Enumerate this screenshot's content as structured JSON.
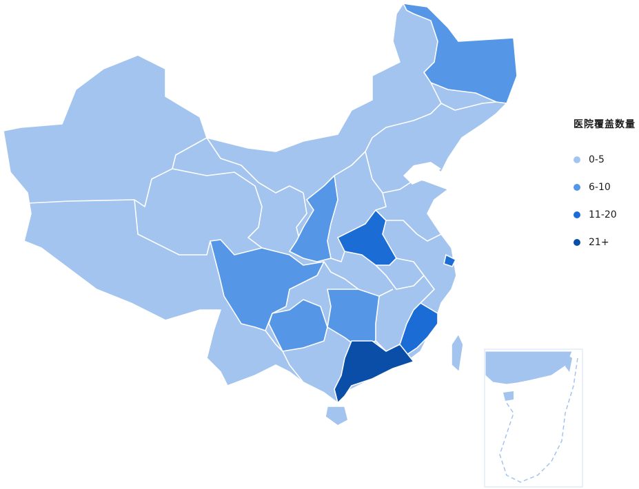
{
  "legend": {
    "title": "医院覆盖数量",
    "items": [
      {
        "label": "0-5",
        "color": "#a3c4ef"
      },
      {
        "label": "6-10",
        "color": "#5597e6"
      },
      {
        "label": "11-20",
        "color": "#1c6cd6"
      },
      {
        "label": "21+",
        "color": "#0a4ea8"
      }
    ]
  },
  "map_data": {
    "default_level": 0,
    "regions": [
      {
        "region": "heilongjiang",
        "level": 1
      },
      {
        "region": "shaanxi",
        "level": 1
      },
      {
        "region": "sichuan",
        "level": 1
      },
      {
        "region": "guizhou",
        "level": 1
      },
      {
        "region": "hunan",
        "level": 1
      },
      {
        "region": "henan",
        "level": 2
      },
      {
        "region": "fujian",
        "level": 2
      },
      {
        "region": "shanghai",
        "level": 2
      },
      {
        "region": "guangdong",
        "level": 3
      }
    ]
  }
}
